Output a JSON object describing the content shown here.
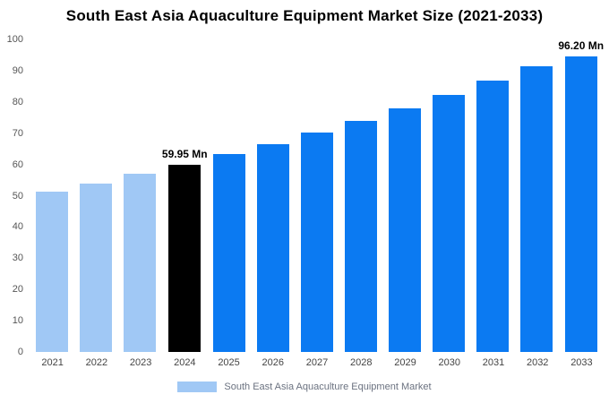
{
  "title": "South East Asia Aquaculture Equipment Market Size (2021-2033)",
  "chart_data": {
    "type": "bar",
    "categories": [
      "2021",
      "2022",
      "2023",
      "2024",
      "2025",
      "2026",
      "2027",
      "2028",
      "2029",
      "2030",
      "2031",
      "2032",
      "2033"
    ],
    "values": [
      51.2,
      53.9,
      56.9,
      59.95,
      63.2,
      66.6,
      70.2,
      74.0,
      78.0,
      82.2,
      86.7,
      91.4,
      96.2
    ],
    "bar_colors": [
      "#A0C8F5",
      "#A0C8F5",
      "#A0C8F5",
      "#000000",
      "#0B7AF2",
      "#0B7AF2",
      "#0B7AF2",
      "#0B7AF2",
      "#0B7AF2",
      "#0B7AF2",
      "#0B7AF2",
      "#0B7AF2",
      "#0B7AF2"
    ],
    "annotations": {
      "2024": "59.95 Mn",
      "2033": "96.20 Mn"
    },
    "title": "South East Asia Aquaculture Equipment Market Size (2021-2033)",
    "xlabel": "",
    "ylabel": "",
    "ylim": [
      0,
      100
    ],
    "yticks": [
      0,
      10,
      20,
      30,
      40,
      50,
      60,
      70,
      80,
      90,
      100
    ],
    "grid": false,
    "legend": {
      "position": "bottom",
      "label": "South East Asia Aquaculture Equipment Market",
      "swatch_color": "#A0C8F5"
    },
    "colors": {
      "light_blue": "#A0C8F5",
      "highlight_black": "#000000",
      "primary_blue": "#0B7AF2",
      "axis_text": "#555555",
      "legend_text": "#6b7280"
    }
  }
}
